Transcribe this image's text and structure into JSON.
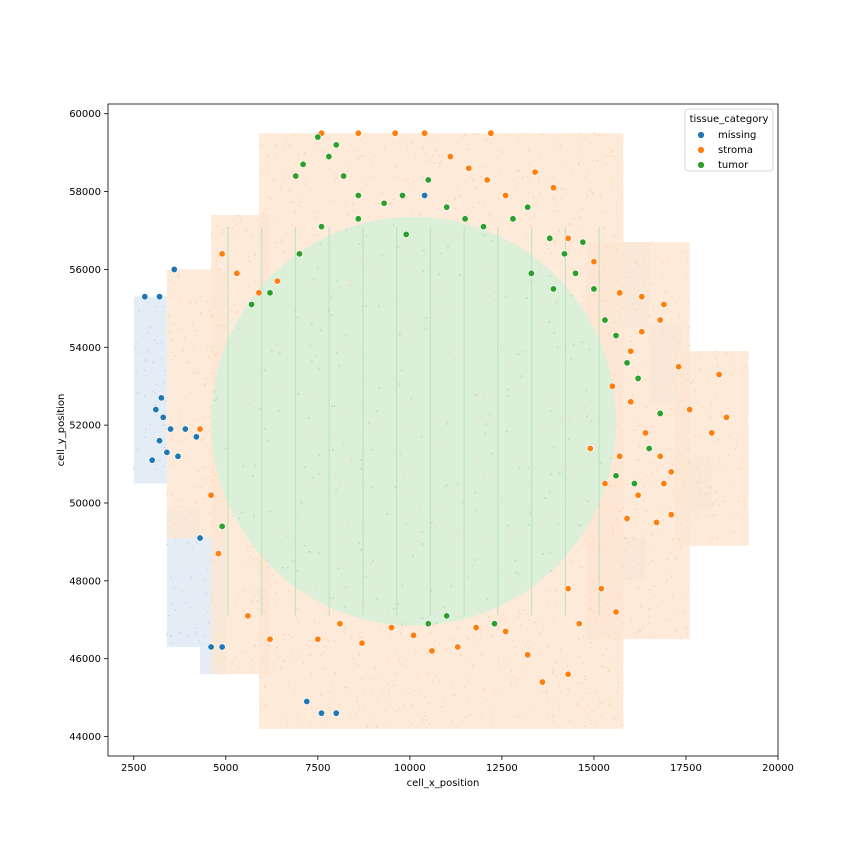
{
  "chart_data": {
    "type": "scatter",
    "title": "",
    "xlabel": "cell_x_position",
    "ylabel": "cell_y_position",
    "xlim": [
      1800,
      20000
    ],
    "ylim": [
      43500,
      60250
    ],
    "x_ticks": [
      2500,
      5000,
      7500,
      10000,
      12500,
      15000,
      17500,
      20000
    ],
    "y_ticks": [
      44000,
      46000,
      48000,
      50000,
      52000,
      54000,
      56000,
      58000,
      60000
    ],
    "x_tick_labels": [
      "2500",
      "5000",
      "7500",
      "10000",
      "12500",
      "15000",
      "17500",
      "20000"
    ],
    "y_tick_labels": [
      "44000",
      "46000",
      "48000",
      "50000",
      "52000",
      "54000",
      "56000",
      "58000",
      "60000"
    ],
    "grid": false,
    "legend": {
      "title": "tissue_category",
      "placement": "top-right",
      "entries": [
        {
          "label": "missing",
          "color": "#1f77b4"
        },
        {
          "label": "stroma",
          "color": "#ff7f0e"
        },
        {
          "label": "tumor",
          "color": "#2ca02c"
        }
      ]
    },
    "series": [
      {
        "name": "missing",
        "color": "#1f77b4",
        "regions": [
          {
            "x": [
              2500,
              3400
            ],
            "y": [
              50500,
              55300
            ]
          },
          {
            "x": [
              3400,
              4300
            ],
            "y": [
              46300,
              49800
            ]
          },
          {
            "x": [
              4300,
              5000
            ],
            "y": [
              45600,
              49100
            ]
          },
          {
            "x": [
              15400,
              16500
            ],
            "y": [
              54500,
              56700
            ]
          },
          {
            "x": [
              16500,
              17400
            ],
            "y": [
              52600,
              54600
            ]
          },
          {
            "x": [
              17400,
              18200
            ],
            "y": [
              49800,
              51200
            ]
          },
          {
            "x": [
              15500,
              16400
            ],
            "y": [
              48000,
              49100
            ]
          }
        ],
        "points": [
          [
            3300,
            52200
          ],
          [
            3500,
            51900
          ],
          [
            3200,
            51600
          ],
          [
            3100,
            52400
          ],
          [
            3400,
            51300
          ],
          [
            3000,
            51100
          ],
          [
            3250,
            52700
          ],
          [
            4300,
            49100
          ],
          [
            4600,
            46300
          ],
          [
            4900,
            46300
          ],
          [
            8000,
            44600
          ],
          [
            7600,
            44600
          ],
          [
            7200,
            44900
          ],
          [
            10400,
            57900
          ],
          [
            2800,
            55300
          ],
          [
            3200,
            55300
          ],
          [
            3600,
            56000
          ],
          [
            3700,
            51200
          ],
          [
            3900,
            51900
          ],
          [
            4200,
            51700
          ]
        ]
      },
      {
        "name": "stroma",
        "color": "#ff7f0e",
        "regions": [
          {
            "x": [
              3400,
              5000
            ],
            "y": [
              49100,
              56000
            ]
          },
          {
            "x": [
              4600,
              6200
            ],
            "y": [
              45600,
              57400
            ]
          },
          {
            "x": [
              5900,
              15800
            ],
            "y": [
              44200,
              59500
            ]
          },
          {
            "x": [
              14800,
              17600
            ],
            "y": [
              46500,
              56700
            ]
          },
          {
            "x": [
              17200,
              19200
            ],
            "y": [
              48900,
              53900
            ]
          }
        ],
        "points": [
          [
            15500,
            53000
          ],
          [
            16000,
            52600
          ],
          [
            16400,
            51800
          ],
          [
            16800,
            51200
          ],
          [
            17100,
            50800
          ],
          [
            17600,
            52400
          ],
          [
            18200,
            51800
          ],
          [
            18600,
            52200
          ],
          [
            16200,
            50200
          ],
          [
            16700,
            49500
          ],
          [
            15900,
            49600
          ],
          [
            15300,
            50500
          ],
          [
            14900,
            51400
          ],
          [
            15700,
            51200
          ],
          [
            16300,
            54400
          ],
          [
            16800,
            54700
          ],
          [
            15600,
            47200
          ],
          [
            15200,
            47800
          ],
          [
            14600,
            46900
          ],
          [
            14300,
            45600
          ],
          [
            13600,
            45400
          ],
          [
            13200,
            46100
          ],
          [
            12600,
            46700
          ],
          [
            11800,
            46800
          ],
          [
            11300,
            46300
          ],
          [
            10600,
            46200
          ],
          [
            10100,
            46600
          ],
          [
            9500,
            46800
          ],
          [
            8700,
            46400
          ],
          [
            8100,
            46900
          ],
          [
            7500,
            46500
          ],
          [
            13900,
            58100
          ],
          [
            13400,
            58500
          ],
          [
            12600,
            57900
          ],
          [
            12100,
            58300
          ],
          [
            11600,
            58600
          ],
          [
            11100,
            58900
          ],
          [
            12200,
            59500
          ],
          [
            10400,
            59500
          ],
          [
            9600,
            59500
          ],
          [
            8600,
            59500
          ],
          [
            7600,
            59500
          ],
          [
            14300,
            56800
          ],
          [
            15000,
            56200
          ],
          [
            15700,
            55400
          ],
          [
            16300,
            55300
          ],
          [
            16900,
            55100
          ],
          [
            16000,
            53900
          ],
          [
            6400,
            55700
          ],
          [
            5900,
            55400
          ],
          [
            5300,
            55900
          ],
          [
            4900,
            56400
          ],
          [
            4300,
            51900
          ],
          [
            4600,
            50200
          ],
          [
            4800,
            48700
          ],
          [
            5600,
            47100
          ],
          [
            6200,
            46500
          ],
          [
            14300,
            47800
          ],
          [
            17100,
            49700
          ],
          [
            18400,
            53300
          ],
          [
            17300,
            53500
          ],
          [
            16900,
            50500
          ]
        ]
      },
      {
        "name": "tumor",
        "color": "#2ca02c",
        "regions": [
          {
            "x": [
              5200,
              15300
            ],
            "y": [
              46900,
              57400
            ],
            "shape": "disk",
            "center": [
              10100,
              52100
            ],
            "radius_x": 5500,
            "radius_y": 5250
          }
        ],
        "points": [
          [
            7500,
            59400
          ],
          [
            8000,
            59200
          ],
          [
            7800,
            58900
          ],
          [
            8200,
            58400
          ],
          [
            8600,
            57900
          ],
          [
            9300,
            57700
          ],
          [
            9800,
            57900
          ],
          [
            10500,
            58300
          ],
          [
            11000,
            57600
          ],
          [
            11500,
            57300
          ],
          [
            12000,
            57100
          ],
          [
            12800,
            57300
          ],
          [
            13200,
            57600
          ],
          [
            13800,
            56800
          ],
          [
            14200,
            56400
          ],
          [
            14700,
            56700
          ],
          [
            14500,
            55900
          ],
          [
            15000,
            55500
          ],
          [
            15300,
            54700
          ],
          [
            15600,
            54300
          ],
          [
            15900,
            53600
          ],
          [
            16200,
            53200
          ],
          [
            13300,
            55900
          ],
          [
            13900,
            55500
          ],
          [
            8600,
            57300
          ],
          [
            9900,
            56900
          ],
          [
            5700,
            55100
          ],
          [
            6200,
            55400
          ],
          [
            7100,
            58700
          ],
          [
            6900,
            58400
          ],
          [
            15600,
            50700
          ],
          [
            16100,
            50500
          ],
          [
            16500,
            51400
          ],
          [
            4900,
            49400
          ],
          [
            10500,
            46900
          ],
          [
            11000,
            47100
          ],
          [
            12300,
            46900
          ],
          [
            7000,
            56400
          ],
          [
            7600,
            57100
          ],
          [
            16800,
            52300
          ]
        ]
      }
    ]
  }
}
